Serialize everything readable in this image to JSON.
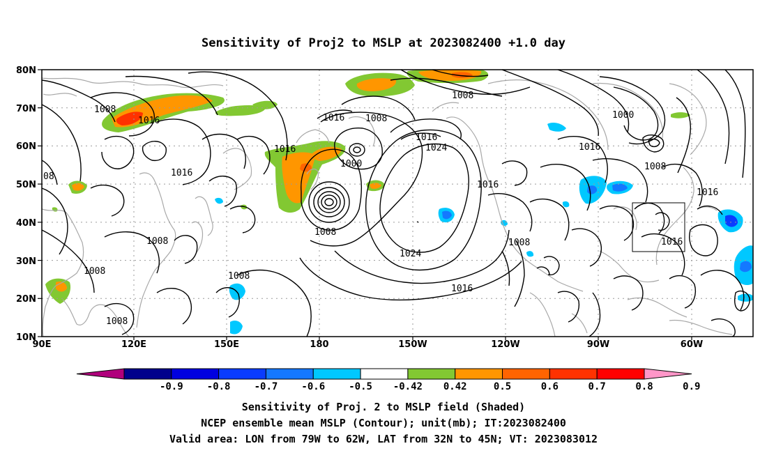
{
  "title": "Sensitivity of Proj2 to MSLP at 2023082400 +1.0 day",
  "lat_labels": [
    "80N",
    "70N",
    "60N",
    "50N",
    "40N",
    "30N",
    "20N",
    "10N"
  ],
  "lon_labels": [
    "90E",
    "120E",
    "150E",
    "180",
    "150W",
    "120W",
    "90W",
    "60W"
  ],
  "contour_labels": [
    "1008",
    "1016",
    "1008",
    "1016",
    "1016",
    "1000",
    "1008",
    "1016",
    "1008",
    "1000",
    "1016",
    "1024",
    "1008",
    "1016",
    "1008",
    "1024",
    "1016",
    "1008",
    "1008",
    "1016",
    "1008",
    "1016",
    "1008",
    "08"
  ],
  "colorbar": {
    "labels": [
      "-0.9",
      "-0.8",
      "-0.7",
      "-0.6",
      "-0.5",
      "-0.42",
      "0.42",
      "0.5",
      "0.6",
      "0.7",
      "0.8",
      "0.9"
    ],
    "colors": [
      "#b0007c",
      "#00008c",
      "#0000e0",
      "#0a3cff",
      "#1478ff",
      "#00c8ff",
      "#ffffff",
      "#82c832",
      "#ff9600",
      "#ff6400",
      "#ff3200",
      "#ff0000",
      "#ff96c8"
    ]
  },
  "shading_colors": {
    "green": "#82c832",
    "orange": "#ff9600",
    "dark_orange": "#ff6400",
    "red": "#ff3200",
    "light_blue": "#00c8ff",
    "blue": "#1478ff",
    "dark_blue": "#0a3cff"
  },
  "captions": [
    "Sensitivity of Proj. 2 to MSLP field (Shaded)",
    "NCEP ensemble mean MSLP (Contour); unit(mb); IT:2023082400",
    "Valid area: LON from 79W to 62W, LAT from 32N to 45N; VT: 2023083012"
  ],
  "valid_area": {
    "lon_min": "79W",
    "lon_max": "62W",
    "lat_min": "32N",
    "lat_max": "45N"
  }
}
